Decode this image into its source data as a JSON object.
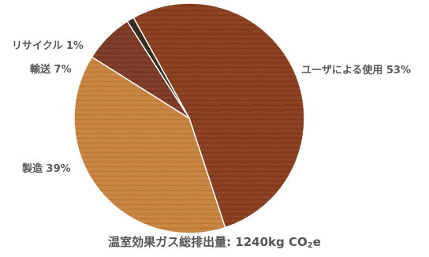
{
  "chart_data": {
    "type": "pie",
    "slices": [
      {
        "label": "ユーザによる使用",
        "value": 53,
        "display": "ユーザによる使用 53%",
        "color": "#8a3f1e"
      },
      {
        "label": "製造",
        "value": 39,
        "display": "製造 39%",
        "color": "#c8843f"
      },
      {
        "label": "輸送",
        "value": 7,
        "display": "輸送 7%",
        "color": "#7d3b26"
      },
      {
        "label": "リサイクル",
        "value": 1,
        "display": "リサイクル 1%",
        "color": "#3a2a1e"
      }
    ],
    "footer": {
      "prefix": "温室効果ガス総排出量: 1240kg CO",
      "subscript": "2",
      "suffix": "e"
    }
  }
}
